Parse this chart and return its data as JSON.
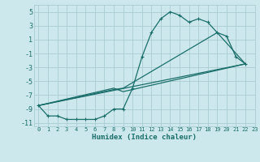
{
  "xlabel": "Humidex (Indice chaleur)",
  "bg_color": "#cce8ec",
  "grid_color": "#aaccd4",
  "line_color": "#1a6e6a",
  "xlim": [
    -0.5,
    23
  ],
  "ylim": [
    -11.5,
    6
  ],
  "xticks": [
    0,
    1,
    2,
    3,
    4,
    5,
    6,
    7,
    8,
    9,
    10,
    11,
    12,
    13,
    14,
    15,
    16,
    17,
    18,
    19,
    20,
    21,
    22,
    23
  ],
  "yticks": [
    -11,
    -9,
    -7,
    -5,
    -3,
    -1,
    1,
    3,
    5
  ],
  "line1_x": [
    0,
    1,
    2,
    3,
    4,
    5,
    6,
    7,
    8,
    9,
    10,
    11,
    12,
    13,
    14,
    15,
    16,
    17,
    18,
    19,
    20,
    21,
    22
  ],
  "line1_y": [
    -8.5,
    -10,
    -10,
    -10.5,
    -10.5,
    -10.5,
    -10.5,
    -10,
    -9,
    -9,
    -6,
    -1.5,
    2,
    4,
    5,
    4.5,
    3.5,
    4,
    3.5,
    2,
    1.5,
    -1.5,
    -2.5
  ],
  "line2_x": [
    0,
    22
  ],
  "line2_y": [
    -8.5,
    -2.5
  ],
  "line3_x": [
    0,
    8,
    9,
    22
  ],
  "line3_y": [
    -8.5,
    -6.0,
    -6.5,
    -2.5
  ],
  "line4_x": [
    0,
    8,
    9,
    19,
    22
  ],
  "line4_y": [
    -8.5,
    -6.2,
    -6.0,
    2.0,
    -2.5
  ]
}
